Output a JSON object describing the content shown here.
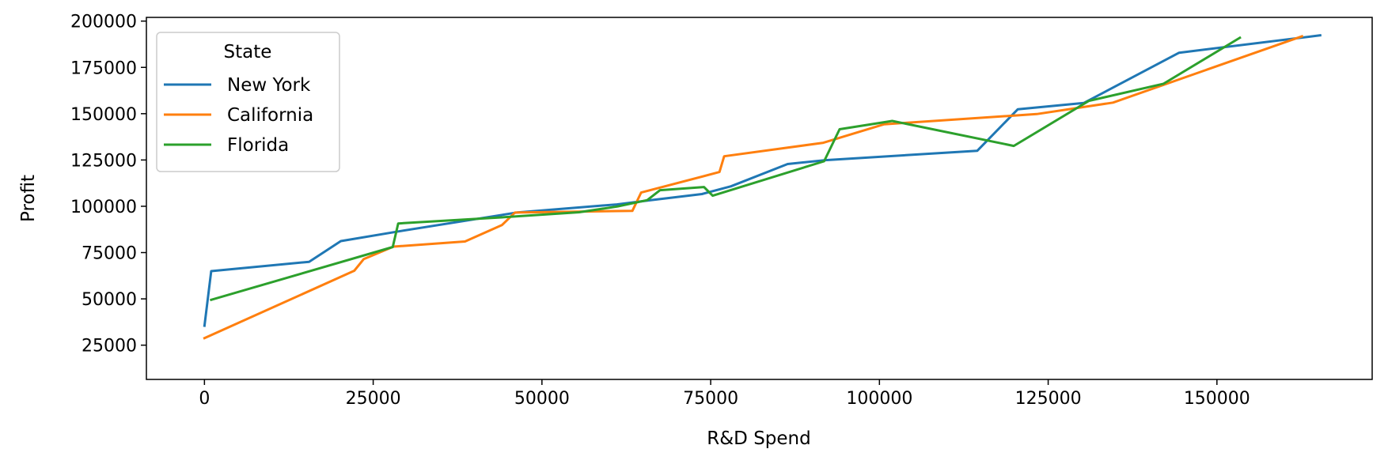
{
  "chart_data": {
    "type": "line",
    "title": "",
    "xlabel": "R&D Spend",
    "ylabel": "Profit",
    "xlim": [
      -8600,
      173000
    ],
    "ylim": [
      6500,
      202000
    ],
    "xticks": [
      0,
      25000,
      50000,
      75000,
      100000,
      125000,
      150000
    ],
    "xtick_labels": [
      "0",
      "25000",
      "50000",
      "75000",
      "100000",
      "125000",
      "150000"
    ],
    "yticks": [
      25000,
      50000,
      75000,
      100000,
      125000,
      150000,
      175000,
      200000
    ],
    "ytick_labels": [
      "25000",
      "50000",
      "75000",
      "100000",
      "125000",
      "150000",
      "175000",
      "200000"
    ],
    "grid": false,
    "legend": {
      "title": "State",
      "placement": "top-left"
    },
    "series": [
      {
        "name": "New York",
        "color": "#1f77b4",
        "points": [
          [
            0,
            35500
          ],
          [
            1000,
            65000
          ],
          [
            15500,
            70000
          ],
          [
            20200,
            81200
          ],
          [
            28700,
            86400
          ],
          [
            46400,
            96700
          ],
          [
            61100,
            101000
          ],
          [
            66100,
            103300
          ],
          [
            73700,
            106600
          ],
          [
            78000,
            110800
          ],
          [
            86400,
            122800
          ],
          [
            92000,
            124900
          ],
          [
            114500,
            130000
          ],
          [
            120500,
            152400
          ],
          [
            130300,
            155800
          ],
          [
            144400,
            182900
          ],
          [
            165300,
            192300
          ]
        ]
      },
      {
        "name": "California",
        "color": "#ff7f0e",
        "points": [
          [
            0,
            28800
          ],
          [
            22200,
            65200
          ],
          [
            23600,
            71500
          ],
          [
            28000,
            78200
          ],
          [
            38600,
            81000
          ],
          [
            44100,
            89900
          ],
          [
            46000,
            96600
          ],
          [
            61000,
            97400
          ],
          [
            63400,
            97500
          ],
          [
            64700,
            107400
          ],
          [
            76300,
            118500
          ],
          [
            77000,
            127000
          ],
          [
            91700,
            134300
          ],
          [
            100700,
            144300
          ],
          [
            119900,
            149000
          ],
          [
            123300,
            149800
          ],
          [
            134600,
            156000
          ],
          [
            162600,
            191800
          ]
        ]
      },
      {
        "name": "Florida",
        "color": "#2ca02c",
        "points": [
          [
            1000,
            49500
          ],
          [
            27900,
            78000
          ],
          [
            28700,
            90700
          ],
          [
            44000,
            94000
          ],
          [
            55500,
            96800
          ],
          [
            61200,
            99900
          ],
          [
            65600,
            103300
          ],
          [
            67500,
            108700
          ],
          [
            74000,
            110400
          ],
          [
            75300,
            105700
          ],
          [
            91800,
            124300
          ],
          [
            94100,
            141600
          ],
          [
            101900,
            146100
          ],
          [
            119900,
            132600
          ],
          [
            131000,
            156900
          ],
          [
            142100,
            166200
          ],
          [
            153400,
            191000
          ]
        ]
      }
    ]
  }
}
